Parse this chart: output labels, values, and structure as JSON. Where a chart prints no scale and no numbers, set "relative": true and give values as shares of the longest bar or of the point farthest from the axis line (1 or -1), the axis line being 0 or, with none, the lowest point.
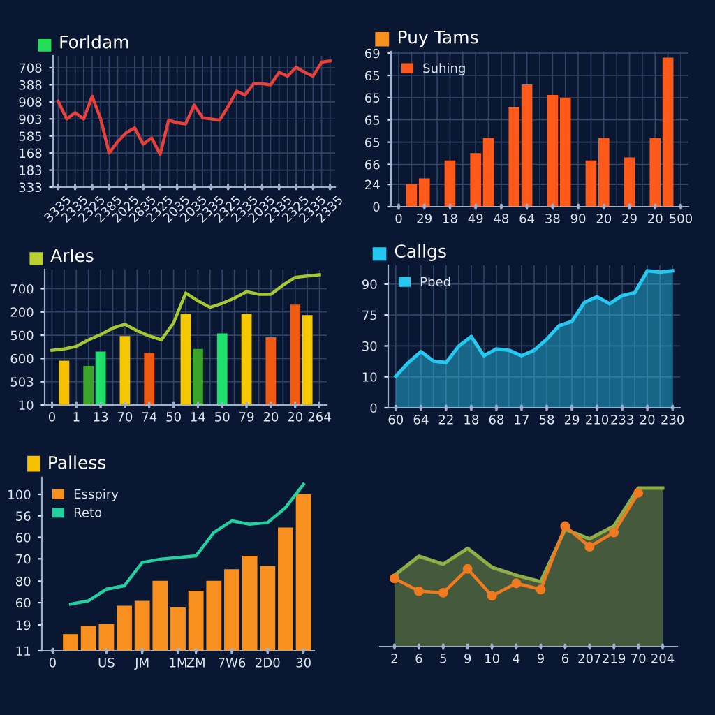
{
  "chart_data": [
    {
      "type": "line",
      "title": "Forldam",
      "relative": true,
      "grid": true,
      "annotations": [
        "333",
        "183",
        "168",
        "585",
        "903",
        "908",
        "388",
        "708"
      ],
      "categories": [
        "3335",
        null,
        "2335",
        null,
        "2325",
        null,
        "2385",
        null,
        "2025",
        null,
        "2835",
        null,
        "2325",
        null,
        "2035",
        null,
        "2035",
        null,
        "2335",
        null,
        "2325",
        null,
        "2335",
        null,
        "2035",
        null,
        "2335",
        null,
        "2325",
        null,
        "2335",
        null,
        "2335"
      ],
      "series": [
        {
          "type": "line",
          "color": "#e8403a",
          "values": [
            0.68,
            0.54,
            0.59,
            0.54,
            0.72,
            0.54,
            0.27,
            0.36,
            0.43,
            0.47,
            0.34,
            0.39,
            0.26,
            0.53,
            0.51,
            0.5,
            0.65,
            0.55,
            0.54,
            0.53,
            0.64,
            0.76,
            0.73,
            0.82,
            0.82,
            0.81,
            0.91,
            0.88,
            0.95,
            0.91,
            0.88,
            0.99,
            1
          ]
        }
      ]
    },
    {
      "type": "bar",
      "title": "Puy Tams",
      "relative": true,
      "grid": true,
      "legend": "top left",
      "annotations": [
        "0",
        "24",
        "66",
        "65",
        "65",
        "65",
        "65",
        "69"
      ],
      "categories": [
        "0",
        null,
        "29",
        null,
        "18",
        null,
        "49",
        null,
        "48",
        null,
        "64",
        null,
        "38",
        null,
        "90",
        null,
        "20",
        null,
        "29",
        null,
        "20",
        null,
        "500"
      ],
      "series": [
        {
          "name": "Suhing",
          "color": "#ff5a1a",
          "values": [
            null,
            0.15,
            0.19,
            null,
            0.31,
            null,
            0.36,
            0.46,
            null,
            0.67,
            0.82,
            null,
            0.75,
            0.73,
            null,
            0.31,
            0.46,
            null,
            0.33,
            null,
            0.46,
            1,
            null
          ]
        }
      ]
    },
    {
      "type": "bar",
      "title": "Arles",
      "relative": true,
      "grid": true,
      "annotations": [
        "10",
        "503",
        "600",
        "500",
        "200",
        "700"
      ],
      "categories": [
        "0",
        null,
        "1",
        null,
        "13",
        null,
        "70",
        null,
        "74",
        null,
        "50",
        null,
        "14",
        null,
        "50",
        null,
        "79",
        null,
        "20",
        null,
        "20",
        null,
        "264"
      ],
      "series": [
        {
          "type": "bar",
          "values": [
            null,
            0.34,
            null,
            0.3,
            0.41,
            null,
            0.53,
            null,
            0.4,
            null,
            null,
            0.7,
            0.43,
            null,
            0.55,
            null,
            0.7,
            null,
            0.52,
            null,
            0.77,
            0.69,
            null
          ],
          "colors": [
            null,
            "#f5c000",
            null,
            "#3aa52a",
            "#1ee06a",
            null,
            "#f5c800",
            null,
            "#f05a10",
            null,
            null,
            "#f5c800",
            "#3aa52a",
            null,
            "#1ee06a",
            null,
            "#f5c800",
            null,
            "#f05a10",
            null,
            "#f05a10",
            "#f5c800",
            null
          ]
        },
        {
          "type": "line",
          "color": "#a8c832",
          "values": [
            0.42,
            0.43,
            0.45,
            0.5,
            0.54,
            0.59,
            0.62,
            0.57,
            0.53,
            0.5,
            0.63,
            0.86,
            0.8,
            0.75,
            0.78,
            0.82,
            0.87,
            0.85,
            0.85,
            0.92,
            0.98,
            0.99,
            1
          ]
        }
      ]
    },
    {
      "type": "area",
      "title": "Callgs",
      "relative": true,
      "grid": true,
      "legend": "top left",
      "annotations": [
        "0",
        "10",
        "30",
        "75",
        "90"
      ],
      "categories": [
        "60",
        null,
        "64",
        null,
        "22",
        null,
        "18",
        null,
        "68",
        null,
        "17",
        null,
        "58",
        null,
        "29",
        null,
        "210",
        null,
        "233",
        null,
        "20",
        null,
        "230"
      ],
      "series": [
        {
          "name": "Pbed",
          "color": "#27c8f0",
          "values": [
            0.23,
            0.33,
            0.41,
            0.34,
            0.33,
            0.45,
            0.52,
            0.38,
            0.43,
            0.42,
            0.38,
            0.42,
            0.5,
            0.6,
            0.63,
            0.77,
            0.81,
            0.76,
            0.82,
            0.84,
            1,
            0.99,
            1
          ]
        }
      ]
    },
    {
      "type": "bar",
      "title": "Palless",
      "relative": true,
      "legend": "top left",
      "annotations": [
        "11",
        "19",
        "60",
        "80",
        "70",
        "60",
        "56",
        "100"
      ],
      "categories": [
        "0",
        null,
        null,
        "US",
        null,
        "JM",
        null,
        "1M",
        "ZM",
        null,
        "7W6",
        null,
        "2D0",
        null,
        "30"
      ],
      "series": [
        {
          "type": "bar",
          "name": "Esspiry",
          "color": "#f7901e",
          "values": [
            null,
            0.1,
            0.15,
            0.16,
            0.27,
            0.3,
            0.42,
            0.26,
            0.36,
            0.42,
            0.49,
            0.57,
            0.51,
            0.74,
            0.94
          ]
        },
        {
          "type": "line",
          "name": "Reto",
          "color": "#22d0a0",
          "values": [
            null,
            0.28,
            0.3,
            0.37,
            0.39,
            0.53,
            0.55,
            0.56,
            0.57,
            0.71,
            0.78,
            0.76,
            0.77,
            0.86,
            1
          ]
        }
      ]
    },
    {
      "type": "area",
      "relative": true,
      "categories": [
        "2",
        "6",
        "5",
        "9",
        "10",
        "4",
        "9",
        "6",
        "207",
        "219",
        "70",
        "204"
      ],
      "series": [
        {
          "type": "area",
          "color": "#8fae48",
          "values": [
            0.45,
            0.57,
            0.52,
            0.62,
            0.5,
            0.45,
            0.41,
            0.74,
            0.68,
            0.76,
            1.0,
            1.0
          ]
        },
        {
          "type": "line",
          "color": "#f07a20",
          "marker": "circle",
          "values": [
            0.43,
            0.35,
            0.34,
            0.49,
            0.32,
            0.4,
            0.36,
            0.76,
            0.63,
            0.72,
            0.97,
            null
          ]
        }
      ]
    }
  ]
}
